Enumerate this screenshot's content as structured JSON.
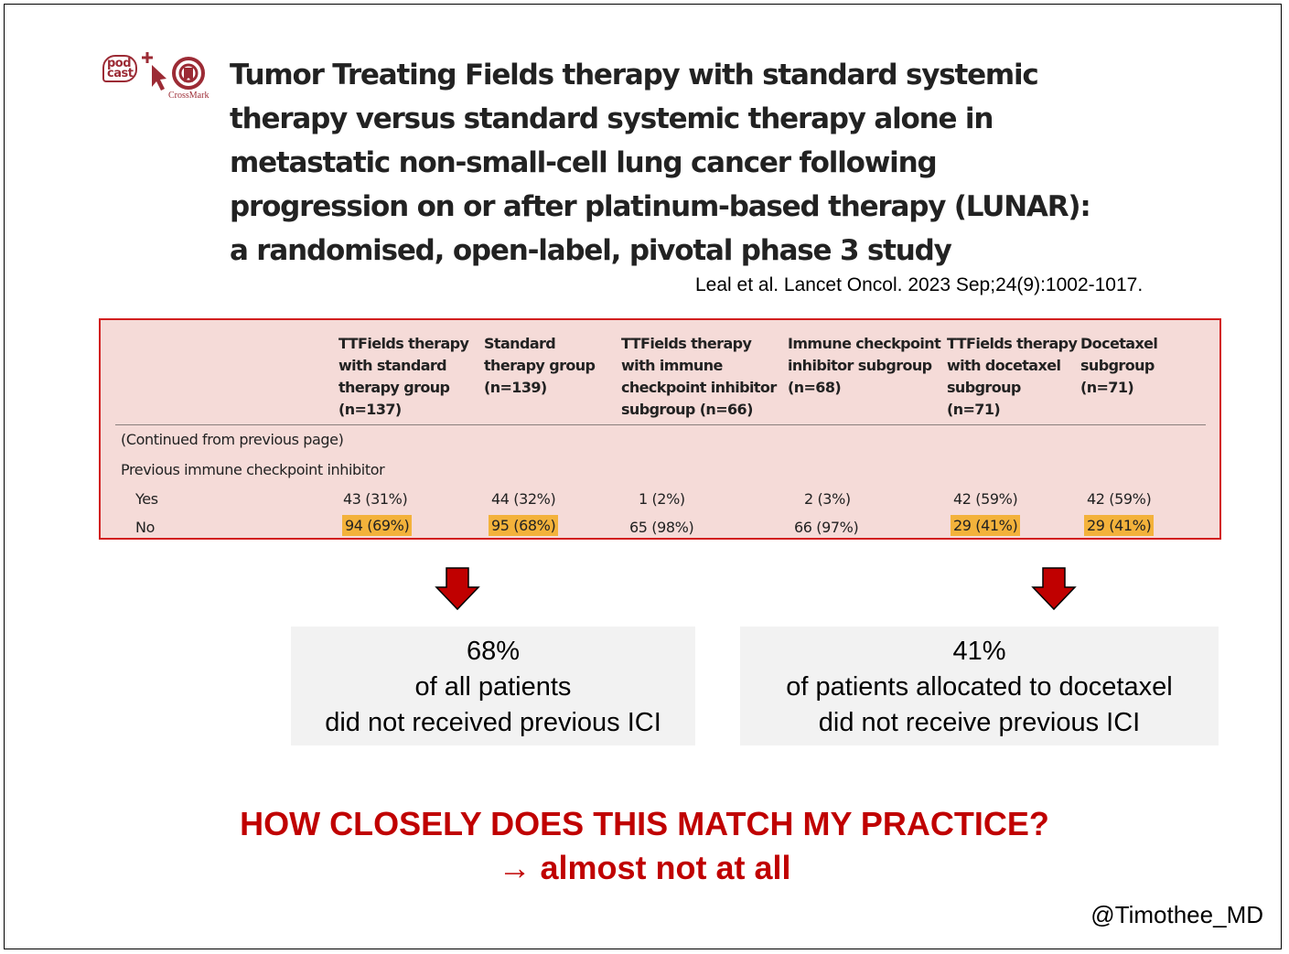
{
  "title": "Tumor Treating Fields therapy with standard systemic therapy versus standard systemic therapy alone in metastatic non-small-cell lung cancer following progression on or after platinum-based therapy (LUNAR): a randomised, open-label, pivotal phase 3 study",
  "logos": {
    "podcast_text": "pod\ncast",
    "crossmark_label": "CrossMark",
    "brand_color": "#9c2b35"
  },
  "citation": "Leal et al. Lancet Oncol. 2023 Sep;24(9):1002-1017.",
  "table": {
    "border_color": "#d21f1f",
    "background_color": "#f5dbd8",
    "highlight_color": "#f3b23b",
    "columns": [
      "TTFields therapy\nwith standard\ntherapy group\n(n=137)",
      "Standard\ntherapy group\n(n=139)",
      "TTFields therapy\nwith immune\ncheckpoint inhibitor\nsubgroup (n=66)",
      "Immune checkpoint\ninhibitor subgroup\n(n=68)",
      "TTFields therapy\nwith docetaxel\nsubgroup\n(n=71)",
      "Docetaxel\nsubgroup\n(n=71)"
    ],
    "continued_note": "(Continued from previous page)",
    "section_label": "Previous immune checkpoint inhibitor",
    "rows": [
      {
        "label": "Yes",
        "values": [
          "43 (31%)",
          "44 (32%)",
          "1 (2%)",
          "2 (3%)",
          "42 (59%)",
          "42 (59%)"
        ]
      },
      {
        "label": "No",
        "values": [
          "94 (69%)",
          "95 (68%)",
          "65 (98%)",
          "66 (97%)",
          "29 (41%)",
          "29 (41%)"
        ],
        "highlighted": [
          true,
          true,
          false,
          false,
          true,
          true
        ]
      }
    ]
  },
  "arrow_color": "#c00000",
  "callouts": {
    "left": {
      "line1": "68%",
      "line2": "of all patients",
      "line3": "did not received previous ICI"
    },
    "right": {
      "line1": "41%",
      "line2": "of patients allocated to docetaxel",
      "line3": "did not receive previous ICI"
    }
  },
  "question": "HOW CLOSELY DOES THIS MATCH MY PRACTICE?",
  "answer": "→ almost not at all",
  "handle": "@Timothee_MD"
}
